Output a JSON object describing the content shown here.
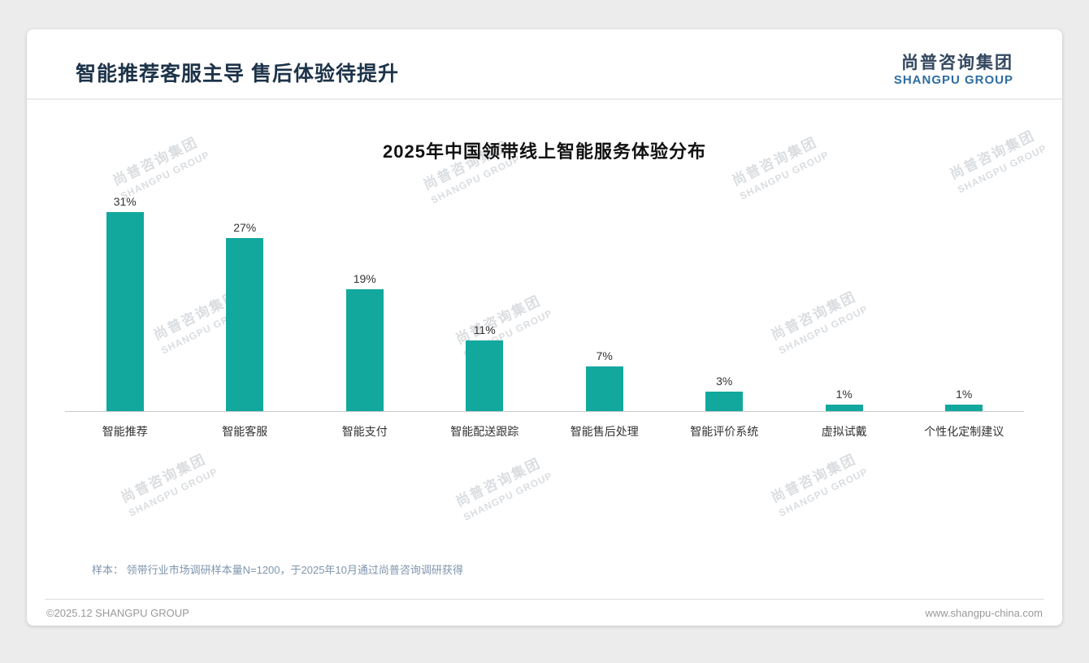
{
  "header": {
    "title": "智能推荐客服主导 售后体验待提升",
    "logo": {
      "cn": "尚普咨询集团",
      "en": "SHANGPU GROUP"
    }
  },
  "watermark": {
    "cn": "尚普咨询集团",
    "en": "SHANGPU GROUP"
  },
  "chart_data": {
    "type": "bar",
    "title": "2025年中国领带线上智能服务体验分布",
    "categories": [
      "智能推荐",
      "智能客服",
      "智能支付",
      "智能配送跟踪",
      "智能售后处理",
      "智能评价系统",
      "虚拟试戴",
      "个性化定制建议"
    ],
    "values": [
      31,
      27,
      19,
      11,
      7,
      3,
      1,
      1
    ],
    "value_labels": [
      "31%",
      "27%",
      "19%",
      "11%",
      "7%",
      "3%",
      "1%",
      "1%"
    ],
    "unit": "%",
    "bar_color": "#12a89e",
    "ylim": [
      0,
      31
    ],
    "grid": false,
    "legend": false
  },
  "note": {
    "text": "样本： 领带行业市场调研样本量N=1200，于2025年10月通过尚普咨询调研获得"
  },
  "footer": {
    "copyright": "©2025.12 SHANGPU GROUP",
    "url": "www.shangpu-china.com"
  }
}
